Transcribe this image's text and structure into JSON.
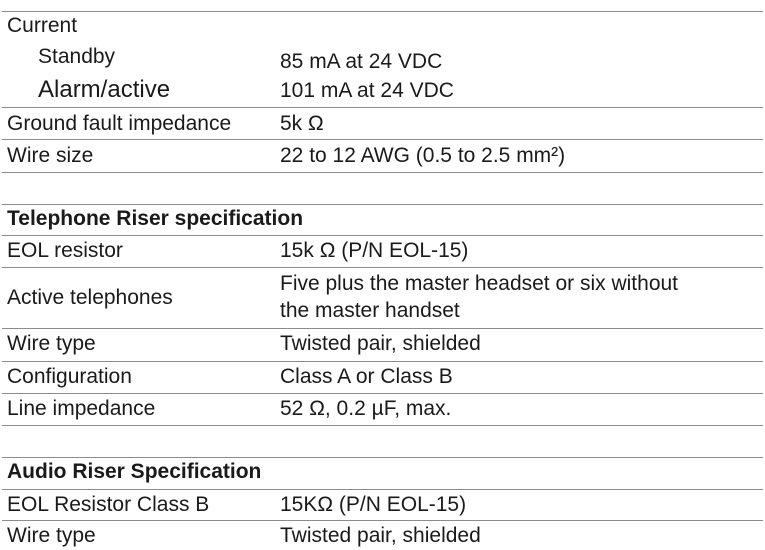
{
  "power": {
    "current_label": "Current",
    "standby_label": "Standby",
    "standby_value": "85 mA at 24 VDC",
    "alarm_label": "Alarm/active",
    "alarm_value": "101 mA at 24 VDC",
    "ground_label": "Ground fault impedance",
    "ground_value": "5k Ω",
    "wire_size_label": "Wire size",
    "wire_size_value": "22 to 12 AWG (0.5 to 2.5 mm²)"
  },
  "telephone": {
    "heading": "Telephone Riser specification",
    "eol_label": "EOL resistor",
    "eol_value": "15k Ω (P/N EOL-15)",
    "active_label": "Active telephones",
    "active_value_line1": "Five plus the master headset or six without",
    "active_value_line2": "the master handset",
    "wire_type_label": "Wire type",
    "wire_type_value": "Twisted pair, shielded",
    "config_label": "Configuration",
    "config_value": "Class A or Class B",
    "line_imp_label": "Line impedance",
    "line_imp_value": "52 Ω, 0.2 µF, max."
  },
  "audio": {
    "heading": "Audio Riser Specification",
    "eol_label": "EOL Resistor Class B",
    "eol_value": "15KΩ (P/N EOL-15)",
    "wire_type_label": "Wire type",
    "wire_type_value": "Twisted pair, shielded"
  }
}
